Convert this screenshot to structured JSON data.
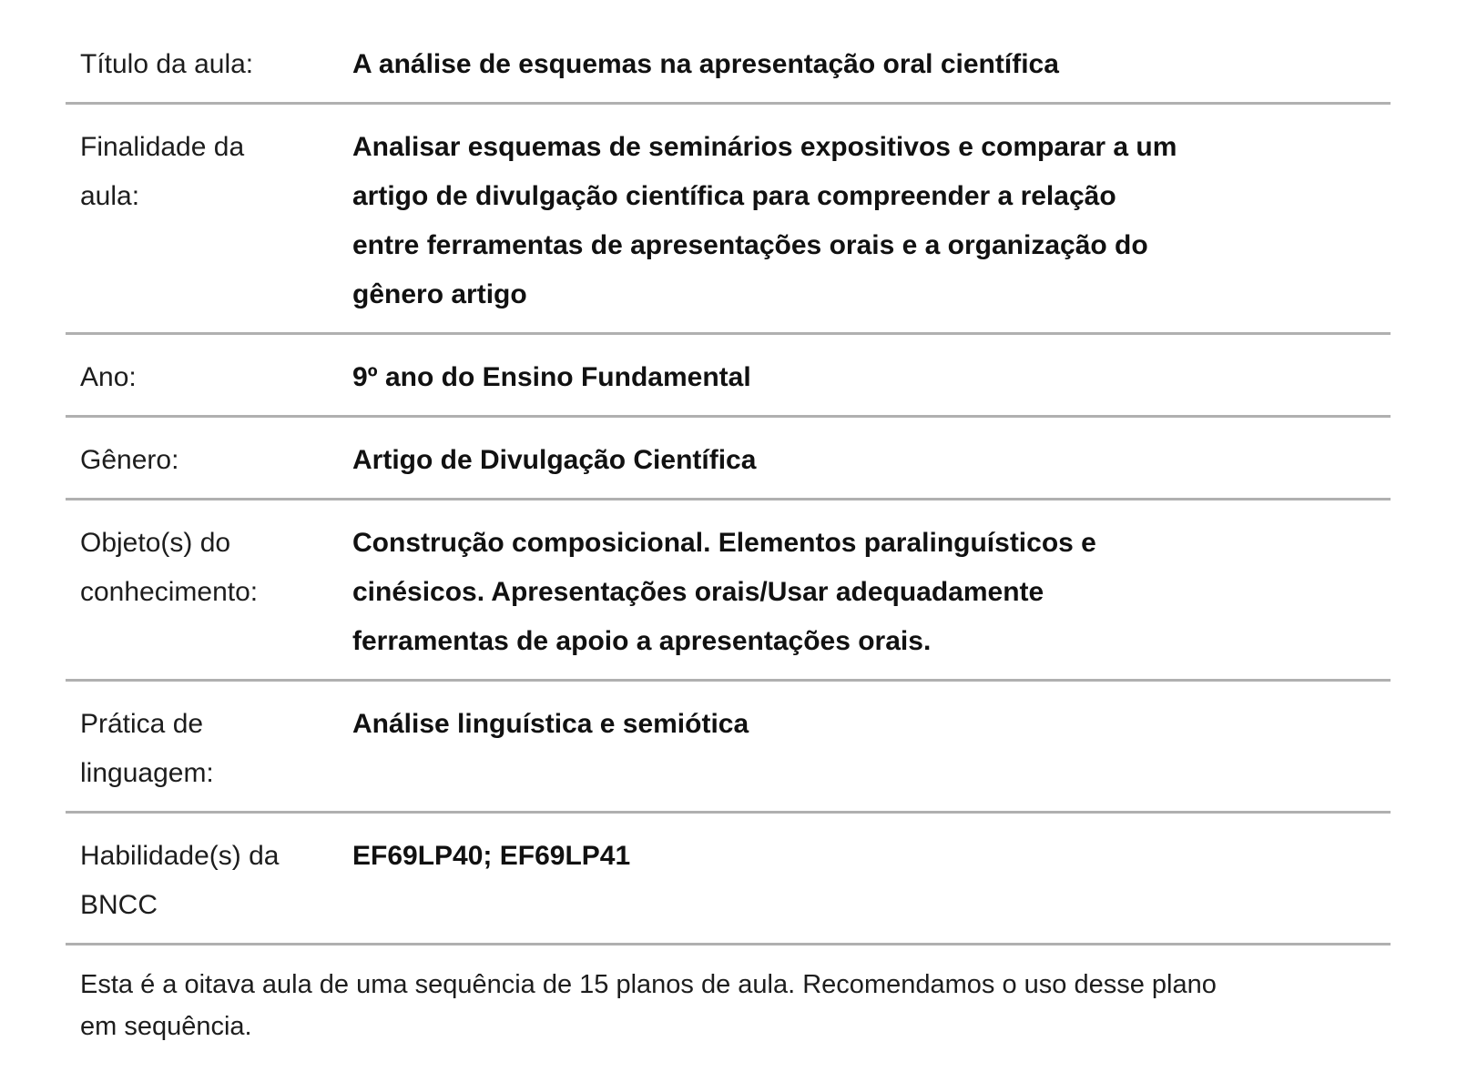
{
  "page": {
    "type": "lesson-plan-info-table",
    "background_color": "#ffffff",
    "divider_color": "#b0b0b0",
    "label_text_color": "#1d1d1d",
    "value_text_color": "#111111"
  },
  "table": {
    "rows": [
      {
        "label": "Título da aula:",
        "value": "A análise de esquemas na apresentação oral científica"
      },
      {
        "label": "Finalidade da\naula:",
        "value": "Analisar esquemas de seminários expositivos e comparar a um\nartigo de divulgação científica para compreender a relação\nentre ferramentas de apresentações orais e a organização do\ngênero artigo"
      },
      {
        "label": "Ano:",
        "value": "9º ano do Ensino Fundamental"
      },
      {
        "label": "Gênero:",
        "value": "Artigo de Divulgação Científica"
      },
      {
        "label": "Objeto(s) do\nconhecimento:",
        "value": "Construção composicional. Elementos paralinguísticos e\ncinésicos. Apresentações orais/Usar adequadamente\nferramentas de apoio a apresentações orais."
      },
      {
        "label": "Prática de\nlinguagem:",
        "value": "Análise linguística e semiótica"
      },
      {
        "label": "Habilidade(s) da\nBNCC",
        "value": "EF69LP40; EF69LP41"
      }
    ]
  },
  "footer": {
    "note": "Esta é a oitava aula de uma sequência de 15 planos de aula. Recomendamos o uso desse plano\nem sequência."
  }
}
